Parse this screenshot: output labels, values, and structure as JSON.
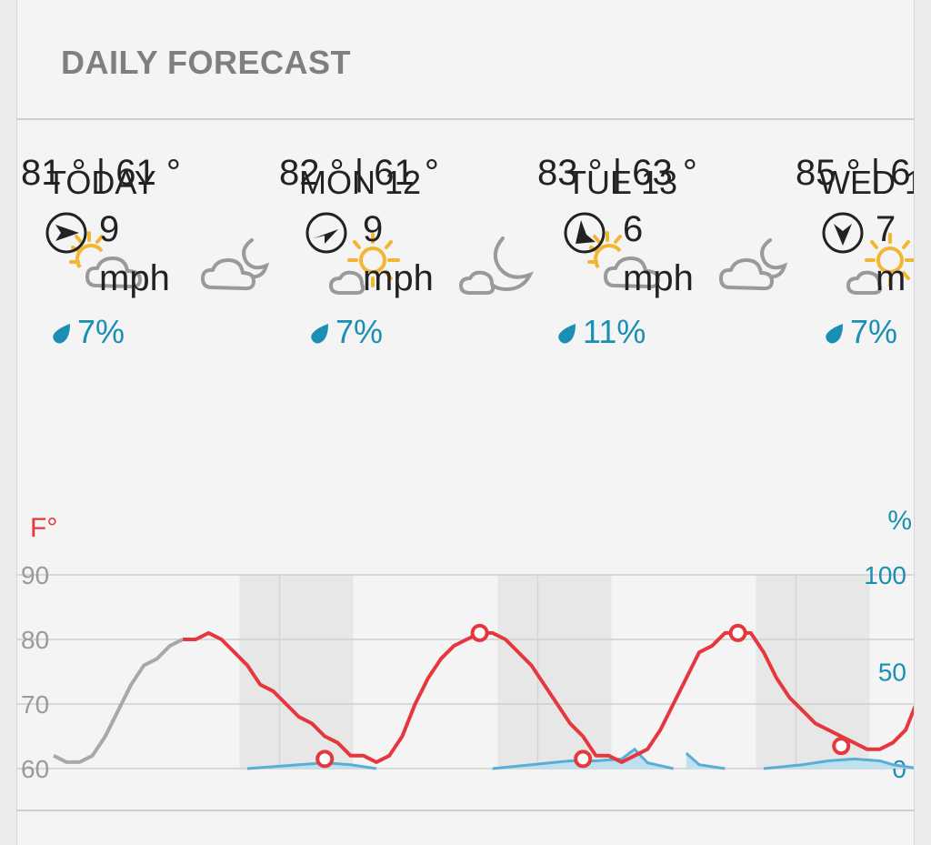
{
  "header": {
    "title": "DAILY FORECAST"
  },
  "days": [
    {
      "label": "TODAY",
      "temps": "81 ° | 61 °",
      "wind_speed": "9",
      "wind_unit": "mph",
      "precip": "7%",
      "day_icon": "sun-cloud-icon",
      "night_icon": "moon-cloud-icon",
      "wind_icon": "wind-direction-icon"
    },
    {
      "label": "MON 12",
      "temps": "82 ° | 61 °",
      "wind_speed": "9",
      "wind_unit": "mph",
      "precip": "7%",
      "day_icon": "sun-small-cloud-icon",
      "night_icon": "moon-small-cloud-icon",
      "wind_icon": "wind-direction-icon"
    },
    {
      "label": "TUE 13",
      "temps": "83 ° | 63 °",
      "wind_speed": "6",
      "wind_unit": "mph",
      "precip": "11%",
      "day_icon": "sun-cloud-icon",
      "night_icon": "moon-cloud-icon",
      "wind_icon": "wind-direction-icon"
    },
    {
      "label": "WED 1",
      "temps": "85 ° | 6",
      "wind_speed": "7",
      "wind_unit": "m",
      "precip": "7%",
      "day_icon": "sun-small-cloud-icon",
      "night_icon": "",
      "wind_icon": "wind-direction-icon"
    }
  ],
  "chart_data": {
    "type": "line",
    "left_axis": {
      "label": "F°",
      "ticks": [
        "90",
        "80",
        "70",
        "60"
      ],
      "range": [
        60,
        90
      ]
    },
    "right_axis": {
      "label": "%",
      "ticks": [
        "100",
        "50",
        "0"
      ],
      "range": [
        0,
        100
      ]
    },
    "temperature_series": {
      "name": "Temperature",
      "past_color": "#a8a8a8",
      "color": "#e5373d",
      "x": [
        0.0,
        0.05,
        0.1,
        0.15,
        0.2,
        0.25,
        0.3,
        0.35,
        0.4,
        0.45,
        0.5,
        0.55,
        0.6,
        0.65,
        0.7,
        0.75,
        0.8,
        0.85,
        0.9,
        0.95,
        1.0,
        1.05,
        1.1,
        1.15,
        1.2,
        1.25,
        1.3,
        1.35,
        1.4,
        1.45,
        1.5,
        1.55,
        1.6,
        1.65,
        1.7,
        1.75,
        1.8,
        1.85,
        1.9,
        1.95,
        2.0,
        2.05,
        2.1,
        2.15,
        2.2,
        2.25,
        2.3,
        2.35,
        2.4,
        2.45,
        2.5,
        2.55,
        2.6,
        2.65,
        2.7,
        2.75,
        2.8,
        2.85,
        2.9,
        2.95,
        3.0,
        3.05,
        3.1,
        3.15,
        3.2,
        3.25,
        3.3,
        3.35,
        3.4,
        3.45,
        3.5,
        3.55
      ],
      "values": [
        62,
        61,
        61,
        62,
        65,
        69,
        73,
        76,
        77,
        79,
        80,
        80,
        81,
        80,
        78,
        76,
        73,
        72,
        70,
        68,
        67,
        65,
        64,
        62,
        62,
        61,
        62,
        65,
        70,
        74,
        77,
        79,
        80,
        81,
        81,
        80,
        78,
        76,
        73,
        70,
        67,
        65,
        62,
        62,
        61,
        62,
        63,
        66,
        70,
        74,
        78,
        79,
        81,
        81,
        81,
        78,
        74,
        71,
        69,
        67,
        66,
        65,
        64,
        63,
        63,
        64,
        66,
        71,
        76,
        79,
        81,
        83
      ],
      "past_until_x": 0.5,
      "markers": [
        {
          "x": 1.05,
          "value": 61.5
        },
        {
          "x": 1.65,
          "value": 81
        },
        {
          "x": 2.05,
          "value": 61.5
        },
        {
          "x": 2.65,
          "value": 81
        },
        {
          "x": 3.05,
          "value": 63.5
        }
      ]
    },
    "precipitation_series": {
      "name": "Precipitation",
      "color": "#5aaed6",
      "x": [
        0.75,
        0.85,
        0.95,
        1.05,
        1.15,
        1.2,
        1.25,
        1.7,
        1.85,
        2.0,
        2.1,
        2.2,
        2.25,
        2.3,
        2.4,
        2.45,
        2.5,
        2.55,
        2.6,
        2.75,
        2.9,
        3.0,
        3.1,
        3.2,
        3.25,
        3.35
      ],
      "values": [
        0,
        1,
        2,
        3,
        2,
        1,
        0,
        0,
        2,
        4,
        4,
        5,
        10,
        3,
        0,
        8,
        2,
        1,
        0,
        0,
        2,
        4,
        5,
        4,
        2,
        0
      ]
    },
    "night_bands": [
      [
        0.72,
        1.16
      ],
      [
        1.72,
        2.16
      ],
      [
        2.72,
        3.16
      ]
    ],
    "grid": true
  }
}
